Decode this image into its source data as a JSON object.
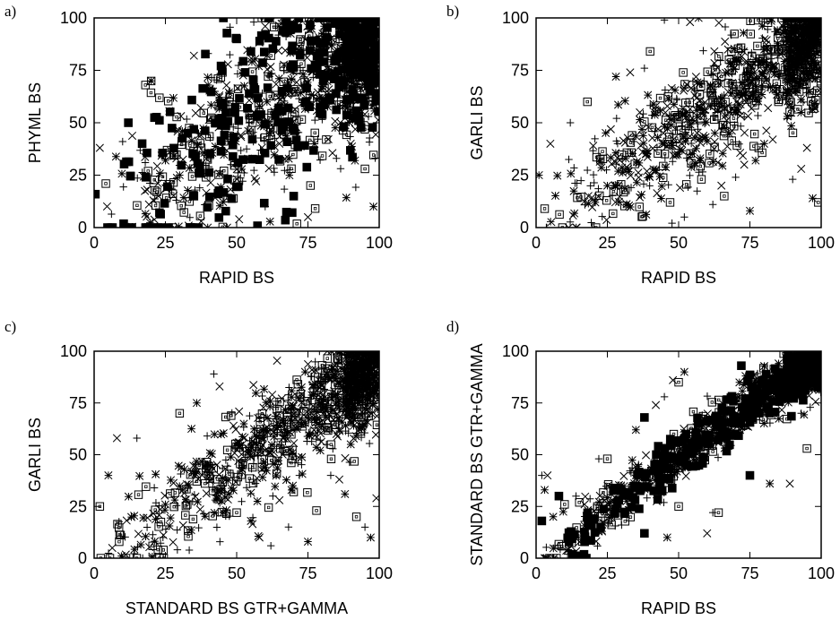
{
  "chart_data": [
    {
      "panel_label": "a)",
      "type": "scatter",
      "xlabel": "RAPID BS",
      "ylabel": "PHYML BS",
      "xlim": [
        0,
        100
      ],
      "ylim": [
        0,
        100
      ],
      "x_ticks": [
        "0",
        "25",
        "50",
        "75",
        "100"
      ],
      "y_ticks": [
        "0",
        "25",
        "50",
        "75",
        "100"
      ],
      "grid": false,
      "markers": [
        "plus",
        "cross",
        "asterisk",
        "open-square",
        "filled-square"
      ],
      "distribution": {
        "spread": 22,
        "lower_bias": 8,
        "filled_square_share": 0.28,
        "count": 1400,
        "seed": 11
      },
      "points": [
        [
          56,
          98
        ],
        [
          60,
          96
        ],
        [
          66,
          100
        ],
        [
          62,
          82
        ],
        [
          55,
          84
        ],
        [
          40,
          83
        ],
        [
          35,
          82
        ],
        [
          20,
          70
        ],
        [
          18,
          68
        ],
        [
          12,
          50
        ],
        [
          10,
          41
        ],
        [
          2,
          38
        ],
        [
          40,
          68
        ],
        [
          45,
          74
        ],
        [
          53,
          74
        ],
        [
          85,
          33
        ],
        [
          90,
          40
        ],
        [
          98,
          10
        ],
        [
          95,
          28
        ],
        [
          70,
          15
        ],
        [
          60,
          10
        ],
        [
          75,
          5
        ],
        [
          30,
          25
        ],
        [
          22,
          17
        ],
        [
          35,
          15
        ],
        [
          48,
          30
        ],
        [
          65,
          40
        ],
        [
          80,
          55
        ],
        [
          88,
          72
        ],
        [
          99,
          100
        ],
        [
          92,
          95
        ],
        [
          45,
          50
        ],
        [
          25,
          32
        ],
        [
          70,
          66
        ],
        [
          50,
          90
        ]
      ]
    },
    {
      "panel_label": "b)",
      "type": "scatter",
      "xlabel": "RAPID BS",
      "ylabel": "GARLI BS",
      "xlim": [
        0,
        100
      ],
      "ylim": [
        0,
        100
      ],
      "x_ticks": [
        "0",
        "25",
        "50",
        "75",
        "100"
      ],
      "y_ticks": [
        "0",
        "25",
        "50",
        "75",
        "100"
      ],
      "grid": false,
      "markers": [
        "plus",
        "cross",
        "asterisk",
        "open-square"
      ],
      "distribution": {
        "spread": 12,
        "lower_bias": 10,
        "filled_square_share": 0,
        "count": 1200,
        "seed": 23
      },
      "points": [
        [
          45,
          99
        ],
        [
          54,
          98
        ],
        [
          57,
          100
        ],
        [
          40,
          84
        ],
        [
          38,
          76
        ],
        [
          33,
          74
        ],
        [
          28,
          72
        ],
        [
          18,
          60
        ],
        [
          12,
          50
        ],
        [
          5,
          40
        ],
        [
          1,
          25
        ],
        [
          3,
          9
        ],
        [
          70,
          24
        ],
        [
          73,
          30
        ],
        [
          80,
          40
        ],
        [
          85,
          60
        ],
        [
          88,
          52
        ],
        [
          95,
          38
        ],
        [
          97,
          14
        ],
        [
          99,
          12
        ],
        [
          62,
          11
        ],
        [
          65,
          20
        ],
        [
          75,
          8
        ],
        [
          58,
          23
        ],
        [
          90,
          23
        ],
        [
          93,
          28
        ],
        [
          25,
          20
        ],
        [
          47,
          12
        ],
        [
          52,
          5
        ],
        [
          83,
          42
        ],
        [
          77,
          32
        ],
        [
          66,
          15
        ]
      ]
    },
    {
      "panel_label": "c)",
      "type": "scatter",
      "xlabel": "STANDARD BS GTR+GAMMA",
      "ylabel": "GARLI BS",
      "xlim": [
        0,
        100
      ],
      "ylim": [
        0,
        100
      ],
      "x_ticks": [
        "0",
        "25",
        "50",
        "75",
        "100"
      ],
      "y_ticks": [
        "0",
        "25",
        "50",
        "75",
        "100"
      ],
      "grid": false,
      "markers": [
        "plus",
        "cross",
        "asterisk",
        "open-square"
      ],
      "distribution": {
        "spread": 11,
        "lower_bias": 10,
        "filled_square_share": 0,
        "count": 1200,
        "seed": 37
      },
      "points": [
        [
          42,
          89
        ],
        [
          44,
          83
        ],
        [
          36,
          75
        ],
        [
          30,
          70
        ],
        [
          15,
          58
        ],
        [
          8,
          58
        ],
        [
          5,
          40
        ],
        [
          2,
          25
        ],
        [
          62,
          6
        ],
        [
          58,
          10
        ],
        [
          75,
          8
        ],
        [
          78,
          23
        ],
        [
          83,
          40
        ],
        [
          86,
          38
        ],
        [
          88,
          31
        ],
        [
          92,
          20
        ],
        [
          95,
          15
        ],
        [
          99,
          29
        ],
        [
          97,
          10
        ],
        [
          70,
          32
        ],
        [
          72,
          40
        ],
        [
          65,
          28
        ],
        [
          55,
          18
        ],
        [
          50,
          22
        ],
        [
          80,
          65
        ],
        [
          85,
          60
        ],
        [
          90,
          55
        ]
      ]
    },
    {
      "panel_label": "d)",
      "type": "scatter",
      "xlabel": "RAPID BS",
      "ylabel": "STANDARD BS GTR+GAMMA",
      "xlim": [
        0,
        100
      ],
      "ylim": [
        0,
        100
      ],
      "x_ticks": [
        "0",
        "25",
        "50",
        "75",
        "100"
      ],
      "y_ticks": [
        "0",
        "25",
        "50",
        "75",
        "100"
      ],
      "grid": false,
      "markers": [
        "plus",
        "cross",
        "asterisk",
        "filled-square",
        "open-square"
      ],
      "distribution": {
        "spread": 6,
        "lower_bias": 4,
        "filled_square_share": 0.3,
        "count": 1300,
        "seed": 53
      },
      "points": [
        [
          2,
          40
        ],
        [
          4,
          40
        ],
        [
          3,
          33
        ],
        [
          8,
          30
        ],
        [
          10,
          26
        ],
        [
          14,
          30
        ],
        [
          17,
          26
        ],
        [
          6,
          20
        ],
        [
          2,
          18
        ],
        [
          50,
          85
        ],
        [
          45,
          78
        ],
        [
          42,
          74
        ],
        [
          35,
          62
        ],
        [
          38,
          68
        ],
        [
          25,
          48
        ],
        [
          22,
          48
        ],
        [
          48,
          86
        ],
        [
          52,
          90
        ],
        [
          72,
          93
        ],
        [
          95,
          53
        ],
        [
          93,
          70
        ],
        [
          89,
          36
        ],
        [
          82,
          36
        ],
        [
          75,
          40
        ],
        [
          64,
          22
        ],
        [
          62,
          22
        ],
        [
          60,
          12
        ],
        [
          46,
          10
        ],
        [
          38,
          12
        ],
        [
          50,
          25
        ],
        [
          30,
          16
        ]
      ]
    }
  ]
}
